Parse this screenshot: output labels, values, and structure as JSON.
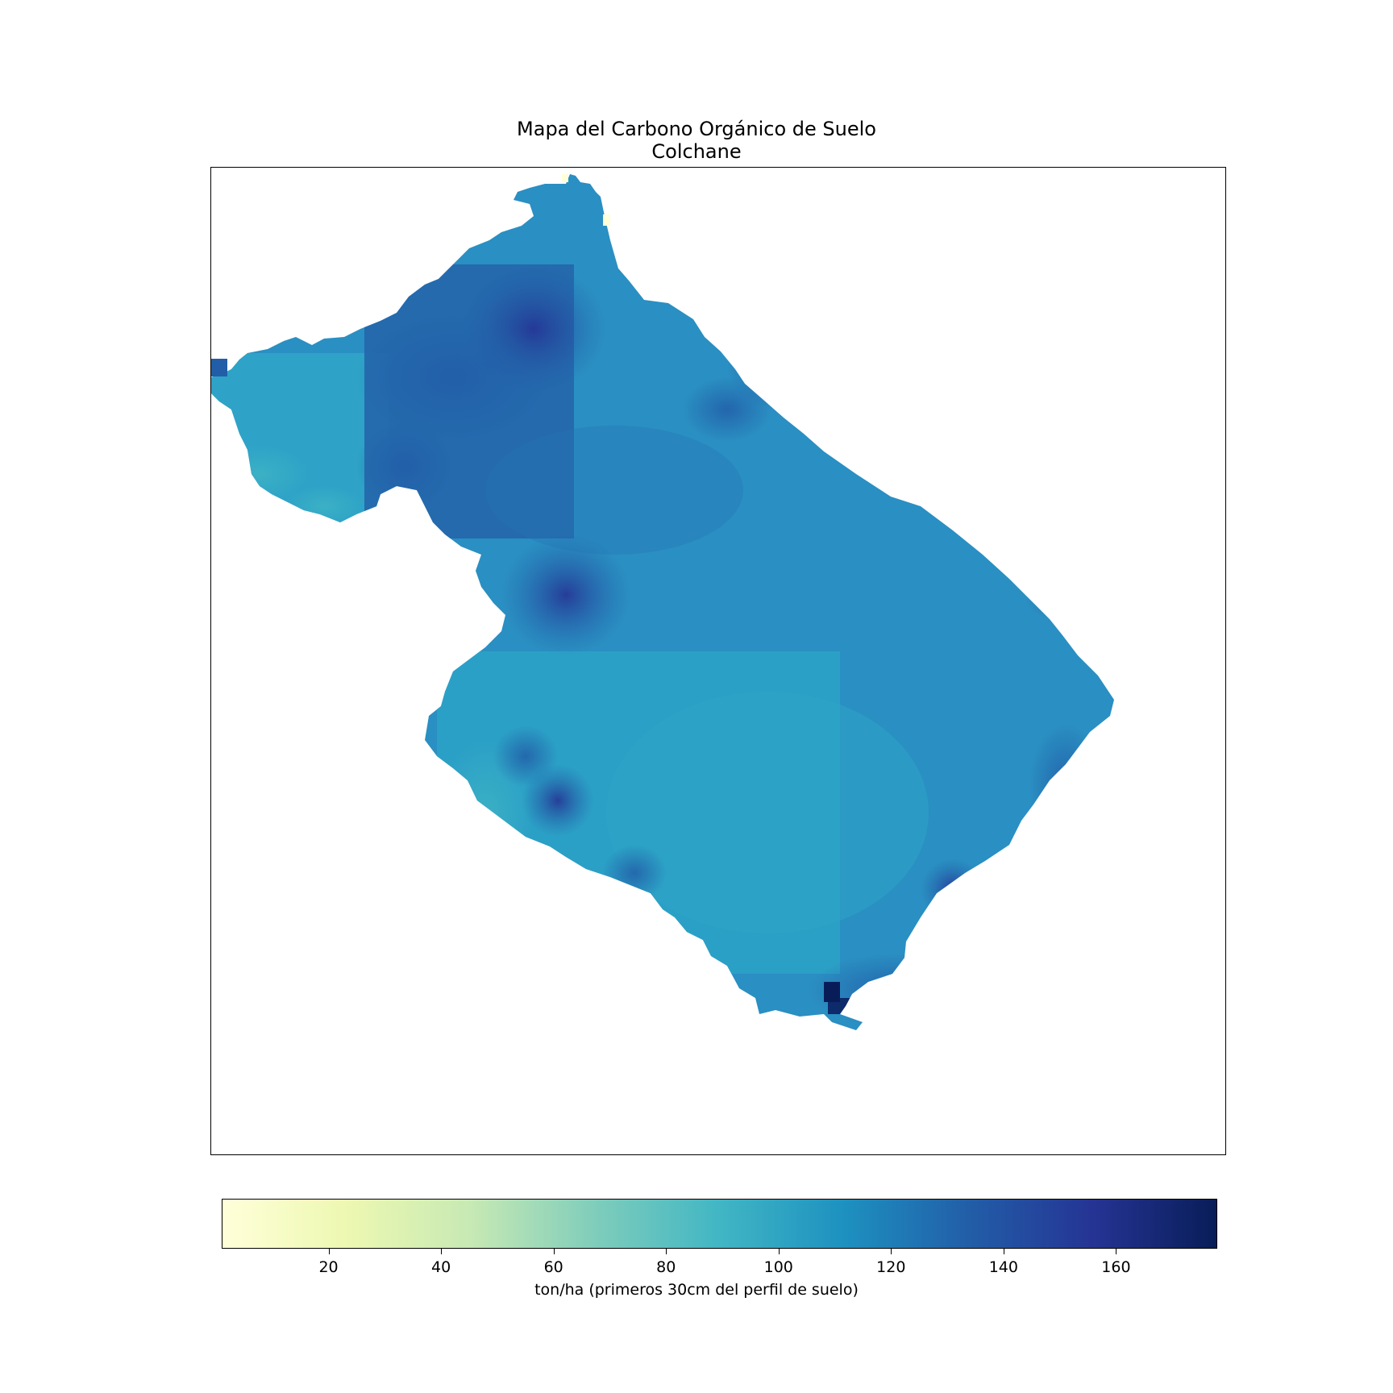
{
  "title": "Mapa del Carbono Orgánico de Suelo",
  "subtitle": "Colchane",
  "map": {
    "type": "choropleth-raster",
    "colormap": "YlGnBu",
    "dominant_value_range": [
      95,
      145
    ],
    "hotspots": [
      {
        "area": "north-central",
        "approx_value": 145
      },
      {
        "area": "central-west",
        "approx_value": 140
      },
      {
        "area": "southeast-tip",
        "approx_value": 175
      }
    ]
  },
  "colorbar": {
    "label": "ton/ha (primeros 30cm del perfil de suelo)",
    "min": 1,
    "max": 178,
    "ticks": [
      20,
      40,
      60,
      80,
      100,
      120,
      140,
      160
    ],
    "tick_labels": [
      "20",
      "40",
      "60",
      "80",
      "100",
      "120",
      "140",
      "160"
    ],
    "colors": [
      "#ffffd9",
      "#edf8b1",
      "#c7e9b4",
      "#7fcdbb",
      "#41b6c4",
      "#1d91c0",
      "#225ea8",
      "#253494",
      "#081d58"
    ]
  }
}
